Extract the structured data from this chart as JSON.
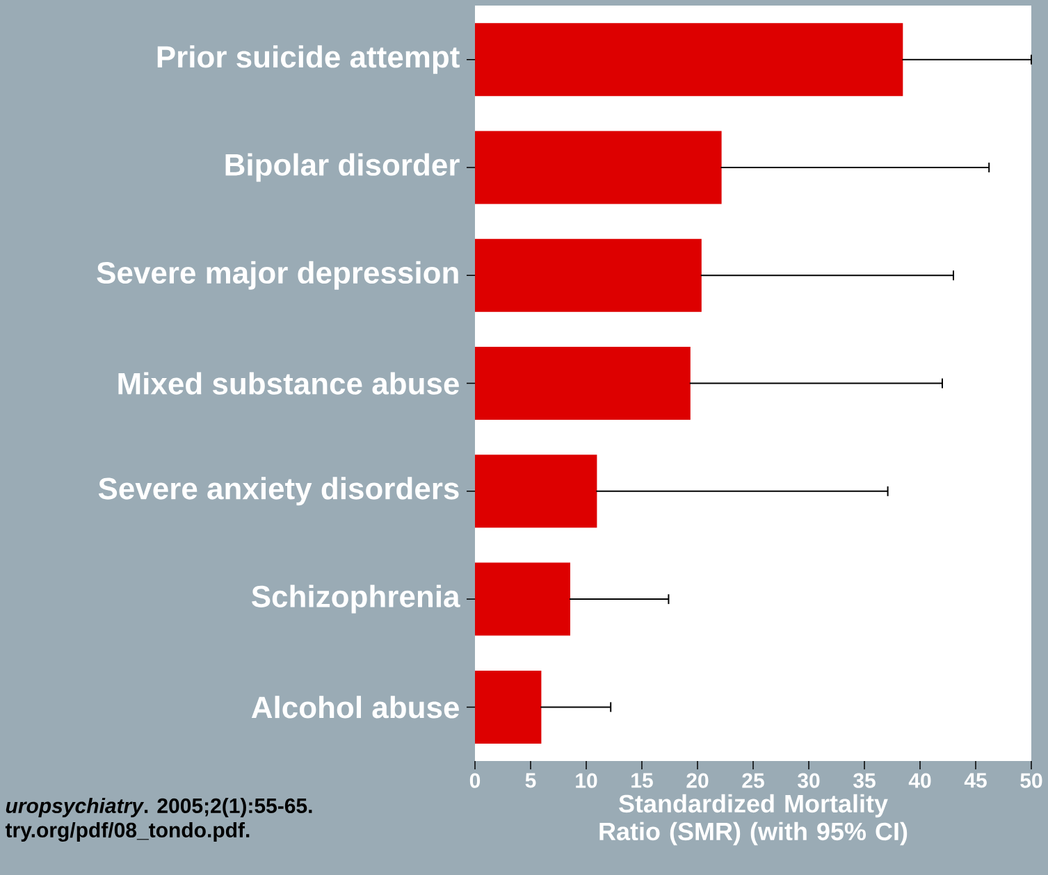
{
  "chart_data": {
    "type": "bar",
    "orientation": "horizontal",
    "categories": [
      "Prior suicide attempt",
      "Bipolar disorder",
      "Severe major depression",
      "Mixed substance abuse",
      "Severe anxiety disorders",
      "Schizophrenia",
      "Alcohol abuse"
    ],
    "values": [
      38.4,
      22.1,
      20.3,
      19.3,
      10.9,
      8.5,
      5.9
    ],
    "errors": [
      [
        38.4,
        50
      ],
      [
        22.1,
        46.2
      ],
      [
        20.3,
        43.0
      ],
      [
        19.3,
        42.0
      ],
      [
        10.9,
        37.1
      ],
      [
        8.5,
        17.4
      ],
      [
        5.9,
        12.2
      ]
    ],
    "color": "#dd0000",
    "xlim": [
      0,
      50
    ],
    "xticks": [
      0,
      5,
      10,
      15,
      20,
      25,
      30,
      35,
      40,
      45,
      50
    ],
    "xlabel": "Standardized Mortality Ratio (SMR) (with 95% CI)",
    "annotations": [
      "*uropsychiatry*. 2005;2(1):55-65.",
      "try.org/pdf/08_tondo.pdf."
    ]
  }
}
